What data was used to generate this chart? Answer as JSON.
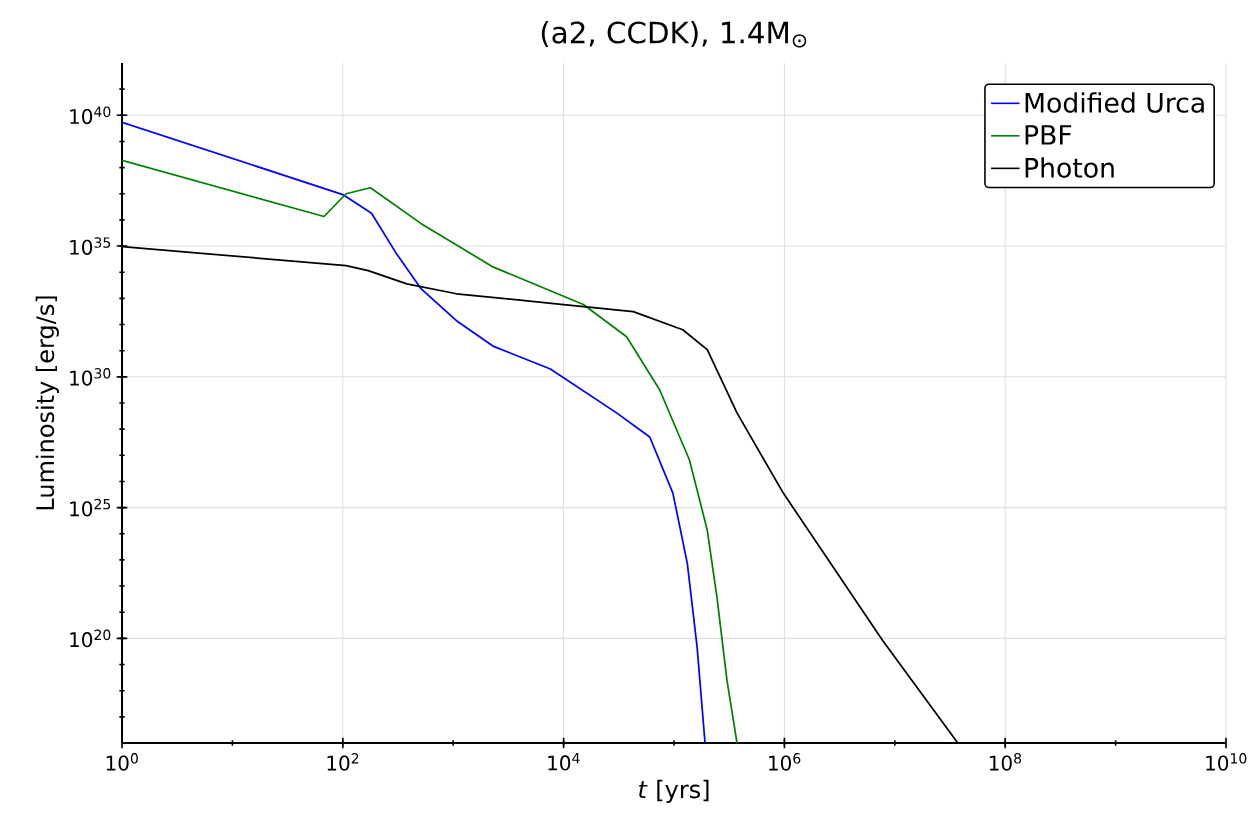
{
  "chart_data": {
    "type": "line",
    "title": "(a2, CCDK), 1.4M$_{⊙}$",
    "xlabel": "*t* [yrs]",
    "ylabel": "Luminosity [erg/s]",
    "log": "xy",
    "grid": true,
    "legend": "top right",
    "marker": "none",
    "line_style": "solid",
    "xlim": [
      1,
      10000000000.0
    ],
    "ylim": [
      1e+16,
      1e+42
    ],
    "xticks": [
      {
        "value": 1,
        "label": "10$^{0}$"
      },
      {
        "value": 100,
        "label": "10$^{2}$"
      },
      {
        "value": 10000.0,
        "label": "10$^{4}$"
      },
      {
        "value": 1000000.0,
        "label": "10$^{6}$"
      },
      {
        "value": 100000000.0,
        "label": "10$^{8}$"
      },
      {
        "value": 10000000000.0,
        "label": "10$^{10}$"
      }
    ],
    "yticks": [
      {
        "value": 1e+20,
        "label": "10$^{20}$"
      },
      {
        "value": 1e+25,
        "label": "10$^{25}$"
      },
      {
        "value": 1e+30,
        "label": "10$^{30}$"
      },
      {
        "value": 1e+35,
        "label": "10$^{35}$"
      },
      {
        "value": 1e+40,
        "label": "10$^{40}$"
      }
    ],
    "series": [
      {
        "name": "Modified Urca",
        "color": "#0000ff",
        "x": [
          1,
          100,
          182,
          302,
          513,
          1070,
          2290,
          7590,
          30200,
          60300,
          97700,
          132000,
          162000,
          191000
        ],
        "values": [
          5.4e+39,
          9.3e+36,
          1.8e+36,
          5.6e+34,
          2.3e+33,
          1.4e+32,
          1.5e+31,
          2e+30,
          4.2e+28,
          5e+27,
          3.6e+25,
          7.4e+22,
          4.5e+19,
          1e+16
        ]
      },
      {
        "name": "PBF",
        "color": "#008000",
        "x": [
          1,
          67.6,
          107,
          178,
          513,
          2290,
          15100,
          37200,
          74100,
          138000,
          200000,
          245000,
          302000,
          372000
        ],
        "values": [
          1.9e+38,
          1.35e+36,
          1e+37,
          1.7e+37,
          7.2e+35,
          1.6e+34,
          5.8e+32,
          3.4e+31,
          3.2e+29,
          6.6e+26,
          1.4e+24,
          3.7e+21,
          2.5e+18,
          1e+16
        ]
      },
      {
        "name": "Photon",
        "color": "#000000",
        "x": [
          1,
          107,
          170,
          380,
          1070,
          10000,
          42700,
          120000,
          200000,
          372000,
          977000,
          7760000,
          37200000
        ],
        "values": [
          9.5e+34,
          1.8e+34,
          1.15e+34,
          3.6e+33,
          1.5e+33,
          5.8e+32,
          3.1e+32,
          6.3e+31,
          1.1e+31,
          4.2e+28,
          3.6e+25,
          8.3e+19,
          1e+16
        ]
      }
    ]
  }
}
